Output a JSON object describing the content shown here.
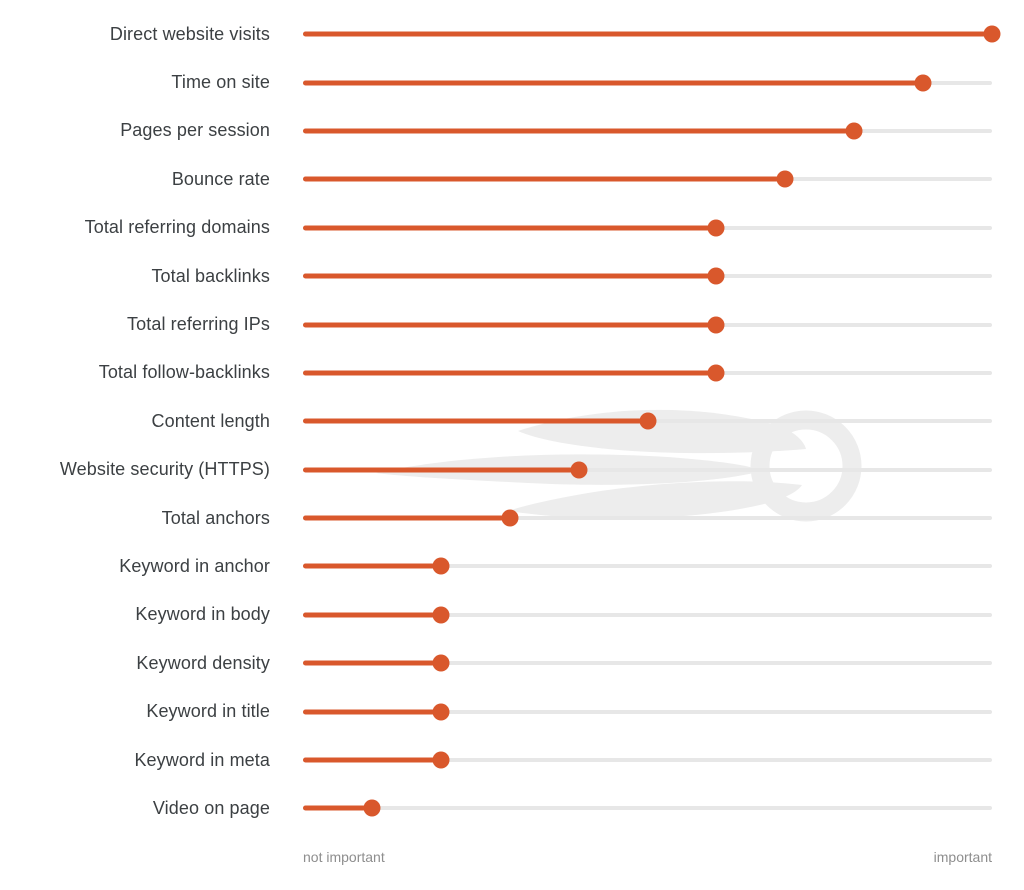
{
  "chart_data": {
    "type": "lollipop",
    "title": "",
    "categories": [
      "Direct website visits",
      "Time on site",
      "Pages per session",
      "Bounce rate",
      "Total referring domains",
      "Total backlinks",
      "Total referring IPs",
      "Total follow-backlinks",
      "Content length",
      "Website security (HTTPS)",
      "Total anchors",
      "Keyword in anchor",
      "Keyword in body",
      "Keyword density",
      "Keyword in title",
      "Keyword in meta",
      "Video on page"
    ],
    "values": [
      1.0,
      0.9,
      0.8,
      0.7,
      0.6,
      0.6,
      0.6,
      0.6,
      0.5,
      0.4,
      0.3,
      0.2,
      0.2,
      0.2,
      0.2,
      0.2,
      0.1
    ],
    "xlabel": "",
    "ylabel": "",
    "xlim": [
      0,
      1
    ],
    "grid": false,
    "legend": false,
    "x_axis_labels": {
      "left": "not important",
      "right": "important"
    }
  },
  "colors": {
    "accent": "#D9582C",
    "track": "#E7E7E7",
    "label_text": "#3C4043",
    "axis_text": "#8E8E8E",
    "watermark": "#EDEDED"
  },
  "watermark": {
    "name": "semrush-logo"
  }
}
